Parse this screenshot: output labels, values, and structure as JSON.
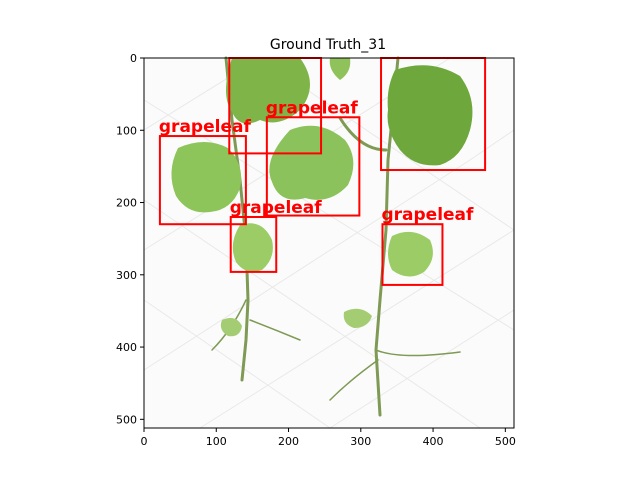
{
  "figure": {
    "title": "Ground Truth_31"
  },
  "image": {
    "description_free": true
  },
  "axes": {
    "x_ticks": [
      "0",
      "100",
      "200",
      "300",
      "400",
      "500"
    ],
    "y_ticks": [
      "0",
      "100",
      "200",
      "300",
      "400",
      "500"
    ],
    "x_tick_values": [
      0,
      100,
      200,
      300,
      400,
      500
    ],
    "y_tick_values": [
      0,
      100,
      200,
      300,
      400,
      500
    ],
    "xlim": [
      0,
      512
    ],
    "ylim": [
      512,
      0
    ]
  },
  "annotations": {
    "box_color": "#ff0000",
    "boxes": [
      {
        "label": "",
        "x1": 118,
        "y1": 0,
        "x2": 245,
        "y2": 132
      },
      {
        "label": "grapeleaf",
        "x1": 170,
        "y1": 82,
        "x2": 298,
        "y2": 218
      },
      {
        "label": "",
        "x1": 328,
        "y1": 0,
        "x2": 472,
        "y2": 155
      },
      {
        "label": "grapeleaf",
        "x1": 22,
        "y1": 108,
        "x2": 141,
        "y2": 230
      },
      {
        "label": "grapeleaf",
        "x1": 120,
        "y1": 220,
        "x2": 183,
        "y2": 296
      },
      {
        "label": "grapeleaf",
        "x1": 330,
        "y1": 230,
        "x2": 413,
        "y2": 314
      }
    ]
  }
}
